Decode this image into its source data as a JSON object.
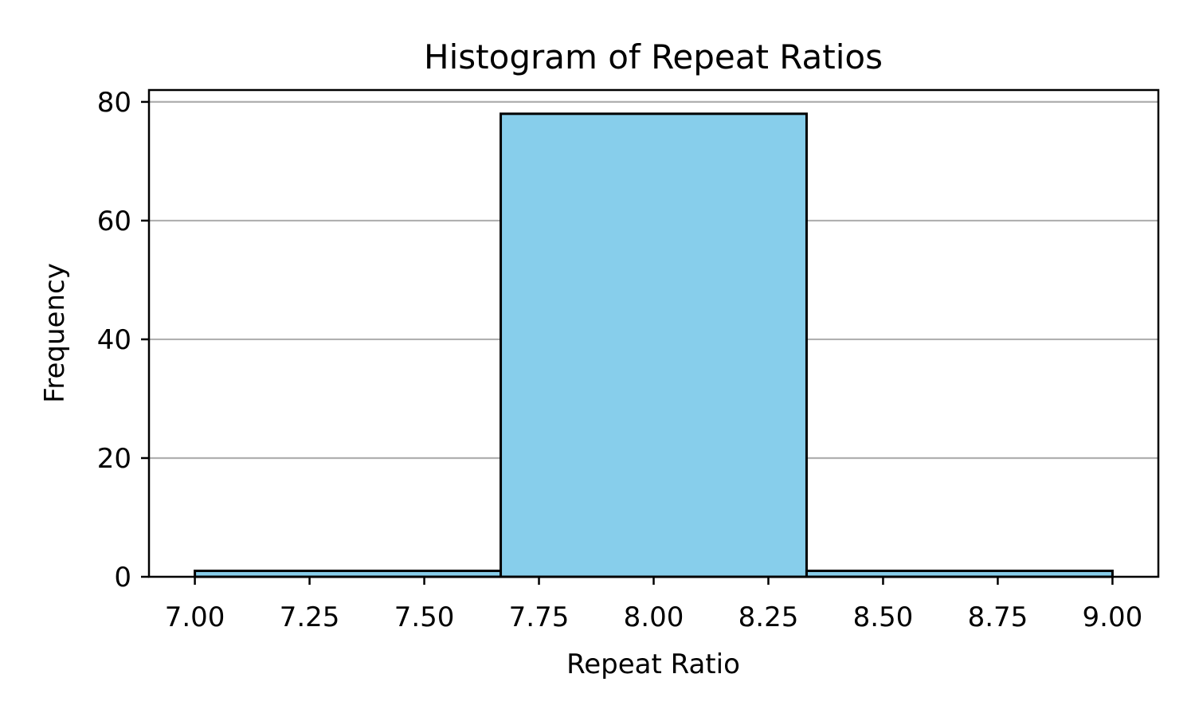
{
  "chart_data": {
    "type": "bar",
    "title": "Histogram of Repeat Ratios",
    "xlabel": "Repeat Ratio",
    "ylabel": "Frequency",
    "bins": [
      {
        "start": 7.0,
        "end": 7.6667,
        "count": 1
      },
      {
        "start": 7.6667,
        "end": 8.3333,
        "count": 78
      },
      {
        "start": 8.3333,
        "end": 9.0,
        "count": 1
      }
    ],
    "xlim": [
      6.9,
      9.1
    ],
    "ylim": [
      0,
      82
    ],
    "xticks": [
      7.0,
      7.25,
      7.5,
      7.75,
      8.0,
      8.25,
      8.5,
      8.75,
      9.0
    ],
    "xtick_labels": [
      "7.00",
      "7.25",
      "7.50",
      "7.75",
      "8.00",
      "8.25",
      "8.50",
      "8.75",
      "9.00"
    ],
    "yticks": [
      0,
      20,
      40,
      60,
      80
    ],
    "ytick_labels": [
      "0",
      "20",
      "40",
      "60",
      "80"
    ],
    "grid": "y",
    "bar_color": "#87ceeb",
    "edge_color": "#000000",
    "grid_color": "#b0b0b0"
  }
}
